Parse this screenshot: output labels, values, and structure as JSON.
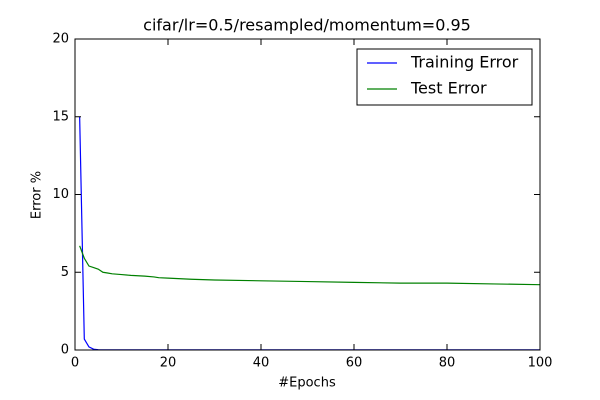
{
  "chart_data": {
    "type": "line",
    "title": "cifar/lr=0.5/resampled/momentum=0.95",
    "x_label": "#Epochs",
    "y_label": "Error %",
    "x": [
      1,
      2,
      3,
      4,
      5,
      6,
      7,
      8,
      10,
      12,
      15,
      17,
      18,
      20,
      25,
      30,
      40,
      50,
      60,
      70,
      80,
      90,
      100
    ],
    "series": [
      {
        "name": "Training Error",
        "color": "#0000ff",
        "values": [
          15,
          0.7,
          0.2,
          0.05,
          0.02,
          0.01,
          0.01,
          0.01,
          0.01,
          0.01,
          0.01,
          0.01,
          0.01,
          0.01,
          0.01,
          0.01,
          0.01,
          0.01,
          0.01,
          0.01,
          0.01,
          0.01,
          0.01
        ]
      },
      {
        "name": "Test Error",
        "color": "#008000",
        "values": [
          6.7,
          5.9,
          5.4,
          5.3,
          5.2,
          5.0,
          4.95,
          4.9,
          4.85,
          4.8,
          4.75,
          4.7,
          4.65,
          4.62,
          4.55,
          4.5,
          4.45,
          4.4,
          4.35,
          4.3,
          4.3,
          4.25,
          4.2
        ]
      }
    ],
    "xlim": [
      0,
      100
    ],
    "xticks": [
      0,
      20,
      40,
      60,
      80,
      100
    ],
    "ylim": [
      0,
      20
    ],
    "yticks": [
      0,
      5,
      10,
      15,
      20
    ],
    "legend": "upper right",
    "grid": false
  }
}
